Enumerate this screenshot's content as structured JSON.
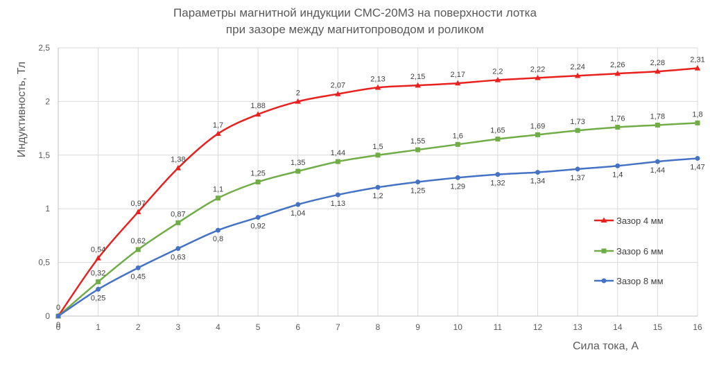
{
  "chart_data": {
    "type": "line",
    "title": "Параметры магнитной индукции СМС-20М3 на поверхности лотка",
    "subtitle": "при зазоре между магнитопроводом и роликом",
    "xlabel": "Сила тока, А",
    "ylabel": "Индуктивность, Тл",
    "x": [
      0,
      1,
      2,
      3,
      4,
      5,
      6,
      7,
      8,
      9,
      10,
      11,
      12,
      13,
      14,
      15,
      16
    ],
    "xlim": [
      0,
      16
    ],
    "ylim": [
      0,
      2.5
    ],
    "y_ticks": [
      "0",
      "0,5",
      "1",
      "1,5",
      "2",
      "2,5"
    ],
    "x_ticks": [
      "0",
      "1",
      "2",
      "3",
      "4",
      "5",
      "6",
      "7",
      "8",
      "9",
      "10",
      "11",
      "12",
      "13",
      "14",
      "15",
      "16"
    ],
    "grid": "vertical and horizontal",
    "legend_position": "right",
    "decimal_separator": ",",
    "series": [
      {
        "name": "Зазор 4 мм",
        "color": "#E8211E",
        "marker": "triangle",
        "label_position": "above",
        "values": [
          0,
          0.54,
          0.97,
          1.38,
          1.7,
          1.88,
          2,
          2.07,
          2.13,
          2.15,
          2.17,
          2.2,
          2.22,
          2.24,
          2.26,
          2.28,
          2.31
        ],
        "labels": [
          "0",
          "0,54",
          "0,97",
          "1,38",
          "1,7",
          "1,88",
          "2",
          "2,07",
          "2,13",
          "2,15",
          "2,17",
          "2,2",
          "2,22",
          "2,24",
          "2,26",
          "2,28",
          "2,31"
        ]
      },
      {
        "name": "Зазор 6 мм",
        "color": "#70AD47",
        "marker": "square",
        "label_position": "above",
        "values": [
          0,
          0.32,
          0.62,
          0.87,
          1.1,
          1.25,
          1.35,
          1.44,
          1.5,
          1.55,
          1.6,
          1.65,
          1.69,
          1.73,
          1.76,
          1.78,
          1.8
        ],
        "labels": [
          "",
          "0,32",
          "0,62",
          "0,87",
          "1,1",
          "1,25",
          "1,35",
          "1,44",
          "1,5",
          "1,55",
          "1,6",
          "1,65",
          "1,69",
          "1,73",
          "1,76",
          "1,78",
          "1,8"
        ]
      },
      {
        "name": "Зазор 8 мм",
        "color": "#4472C4",
        "marker": "circle",
        "label_position": "below",
        "values": [
          0,
          0.25,
          0.45,
          0.63,
          0.8,
          0.92,
          1.04,
          1.13,
          1.2,
          1.25,
          1.29,
          1.32,
          1.34,
          1.37,
          1.4,
          1.44,
          1.47
        ],
        "labels": [
          "0",
          "0,25",
          "0,45",
          "0,63",
          "0,8",
          "0,92",
          "1,04",
          "1,13",
          "1,2",
          "1,25",
          "1,29",
          "1,32",
          "1,34",
          "1,37",
          "1,4",
          "1,44",
          "1,47"
        ]
      }
    ]
  }
}
